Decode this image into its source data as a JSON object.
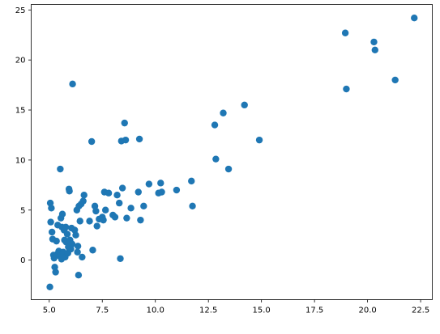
{
  "chart_data": {
    "type": "scatter",
    "title": "",
    "xlabel": "",
    "ylabel": "",
    "xlim": [
      4.15,
      23.05
    ],
    "ylim": [
      -3.95,
      25.55
    ],
    "xticks": [
      {
        "value": 5.0,
        "label": "5.0"
      },
      {
        "value": 7.5,
        "label": "7.5"
      },
      {
        "value": 10.0,
        "label": "10.0"
      },
      {
        "value": 12.5,
        "label": "12.5"
      },
      {
        "value": 15.0,
        "label": "15.0"
      },
      {
        "value": 17.5,
        "label": "17.5"
      },
      {
        "value": 20.0,
        "label": "20.0"
      },
      {
        "value": 22.5,
        "label": "22.5"
      }
    ],
    "yticks": [
      {
        "value": 0,
        "label": "0"
      },
      {
        "value": 5,
        "label": "5"
      },
      {
        "value": 10,
        "label": "10"
      },
      {
        "value": 15,
        "label": "15"
      },
      {
        "value": 20,
        "label": "20"
      },
      {
        "value": 25,
        "label": "25"
      }
    ],
    "grid": false,
    "marker_color": "#1f77b4",
    "points": [
      [
        5.03,
        -2.68
      ],
      [
        5.05,
        5.7
      ],
      [
        5.07,
        3.8
      ],
      [
        5.1,
        5.2
      ],
      [
        5.13,
        2.8
      ],
      [
        5.16,
        2.1
      ],
      [
        5.2,
        0.5
      ],
      [
        5.23,
        0.2
      ],
      [
        5.26,
        -0.7
      ],
      [
        5.3,
        -1.2
      ],
      [
        5.34,
        1.9
      ],
      [
        5.38,
        0.6
      ],
      [
        5.4,
        3.5
      ],
      [
        5.45,
        0.9
      ],
      [
        5.5,
        0.4
      ],
      [
        5.52,
        9.1
      ],
      [
        5.55,
        4.2
      ],
      [
        5.58,
        0.1
      ],
      [
        5.6,
        3.3
      ],
      [
        5.62,
        4.6
      ],
      [
        5.66,
        0.8
      ],
      [
        5.7,
        3.0
      ],
      [
        5.72,
        2.0
      ],
      [
        5.75,
        0.3
      ],
      [
        5.78,
        3.3
      ],
      [
        5.8,
        1.8
      ],
      [
        5.85,
        2.6
      ],
      [
        5.88,
        0.7
      ],
      [
        5.9,
        1.3
      ],
      [
        5.93,
        7.1
      ],
      [
        5.95,
        6.9
      ],
      [
        5.98,
        2.0
      ],
      [
        6.02,
        1.1
      ],
      [
        6.05,
        3.2
      ],
      [
        6.08,
        1.6
      ],
      [
        6.1,
        17.6
      ],
      [
        6.2,
        3.0
      ],
      [
        6.25,
        2.5
      ],
      [
        6.3,
        5.0
      ],
      [
        6.33,
        0.8
      ],
      [
        6.35,
        1.4
      ],
      [
        6.38,
        -1.5
      ],
      [
        6.4,
        5.4
      ],
      [
        6.45,
        3.9
      ],
      [
        6.5,
        5.6
      ],
      [
        6.55,
        0.3
      ],
      [
        6.6,
        5.9
      ],
      [
        6.64,
        6.5
      ],
      [
        6.9,
        3.9
      ],
      [
        7.0,
        11.85
      ],
      [
        7.05,
        1.0
      ],
      [
        7.15,
        5.4
      ],
      [
        7.2,
        4.9
      ],
      [
        7.25,
        3.4
      ],
      [
        7.35,
        4.1
      ],
      [
        7.5,
        4.3
      ],
      [
        7.55,
        4.0
      ],
      [
        7.6,
        6.8
      ],
      [
        7.65,
        5.0
      ],
      [
        7.8,
        6.7
      ],
      [
        8.0,
        4.5
      ],
      [
        8.1,
        4.3
      ],
      [
        8.2,
        6.5
      ],
      [
        8.3,
        5.7
      ],
      [
        8.35,
        0.15
      ],
      [
        8.4,
        11.9
      ],
      [
        8.45,
        7.2
      ],
      [
        8.55,
        13.7
      ],
      [
        8.6,
        12.0
      ],
      [
        8.65,
        4.2
      ],
      [
        8.85,
        5.2
      ],
      [
        9.2,
        6.8
      ],
      [
        9.25,
        12.1
      ],
      [
        9.3,
        4.0
      ],
      [
        9.45,
        5.4
      ],
      [
        9.7,
        7.6
      ],
      [
        10.15,
        6.7
      ],
      [
        10.25,
        7.7
      ],
      [
        10.3,
        6.8
      ],
      [
        11.0,
        7.0
      ],
      [
        11.7,
        7.9
      ],
      [
        11.75,
        5.4
      ],
      [
        12.8,
        13.5
      ],
      [
        12.85,
        10.1
      ],
      [
        13.2,
        14.7
      ],
      [
        13.45,
        9.1
      ],
      [
        14.2,
        15.5
      ],
      [
        14.9,
        12.0
      ],
      [
        18.95,
        22.7
      ],
      [
        19.0,
        17.1
      ],
      [
        20.3,
        21.8
      ],
      [
        20.35,
        21.0
      ],
      [
        21.3,
        18.0
      ],
      [
        22.2,
        24.2
      ]
    ]
  }
}
